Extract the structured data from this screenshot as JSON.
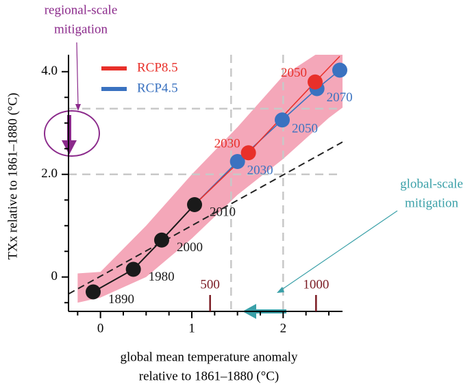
{
  "chart_data": {
    "type": "line",
    "ylabel": "TXx relative to 1861–1880 (°C)",
    "xlabel": [
      "global mean temperature anomaly",
      "relative to 1861–1880 (°C)"
    ],
    "xlim": [
      -0.35,
      2.65
    ],
    "ylim": [
      -0.67,
      4.33
    ],
    "xticks": [
      0,
      1,
      2
    ],
    "xticks_minor": [
      -0.25,
      0.25,
      0.5,
      0.75,
      1.25,
      1.5,
      1.75,
      2.25,
      2.5
    ],
    "yticks": [
      0,
      {
        "value": 2,
        "label": "2.0"
      },
      {
        "value": 4,
        "label": "4.0"
      }
    ],
    "yticks_minor": [
      -0.5,
      0.5,
      1,
      1.5,
      2.5,
      3,
      3.5
    ],
    "emission_ticks": [
      {
        "value": 1.2,
        "label": "500"
      },
      {
        "value": 2.36,
        "label": "1000"
      }
    ],
    "emission_color": "#7a1a22",
    "band": {
      "color": "#f4a7b9",
      "x": [
        -0.25,
        0,
        0.5,
        1,
        1.5,
        2,
        2.5,
        2.65
      ],
      "upper": [
        0.07,
        0.1,
        1.0,
        2.0,
        2.92,
        3.92,
        4.5,
        4.7
      ],
      "lower": [
        -0.5,
        -0.4,
        0.0,
        0.75,
        1.6,
        2.3,
        3.1,
        3.3
      ]
    },
    "fit_line": {
      "color": "#222222",
      "x": [
        -0.35,
        2.65
      ],
      "y": [
        -0.33,
        2.63
      ]
    },
    "reference_lines": {
      "color": "#c8c8c8",
      "x": [
        1.43,
        2
      ],
      "y": [
        2,
        3.28
      ]
    },
    "series": [
      {
        "color": "#1a1a1a",
        "x": [
          -0.08,
          0.36,
          0.67,
          1.03
        ],
        "values": [
          -0.29,
          0.15,
          0.72,
          1.41
        ],
        "point_labels": [
          "1890",
          "1980",
          "2000",
          "2010"
        ],
        "markers": [
          true,
          true,
          true,
          true
        ]
      },
      {
        "name": "RCP8.5",
        "color": "#e8302a",
        "x": [
          1.03,
          1.62,
          2.35,
          2.62
        ],
        "values": [
          1.41,
          2.42,
          3.8,
          4.3
        ],
        "point_labels": [
          null,
          "2030",
          "2050",
          null
        ],
        "markers": [
          false,
          true,
          true,
          false
        ]
      },
      {
        "name": "RCP4.5",
        "color": "#3a72c0",
        "x": [
          1.03,
          1.5,
          1.99,
          2.37,
          2.62
        ],
        "values": [
          1.41,
          2.25,
          3.06,
          3.67,
          4.03
        ],
        "point_labels": [
          null,
          "2030",
          "2050",
          "2070",
          null
        ],
        "markers": [
          false,
          true,
          true,
          true,
          true
        ]
      }
    ],
    "annotations": [
      {
        "lines": [
          "regional-scale",
          "mitigation"
        ],
        "color": "#8b2a8b"
      },
      {
        "lines": [
          "global-scale",
          "mitigation"
        ],
        "color": "#3aa0a8"
      }
    ]
  }
}
